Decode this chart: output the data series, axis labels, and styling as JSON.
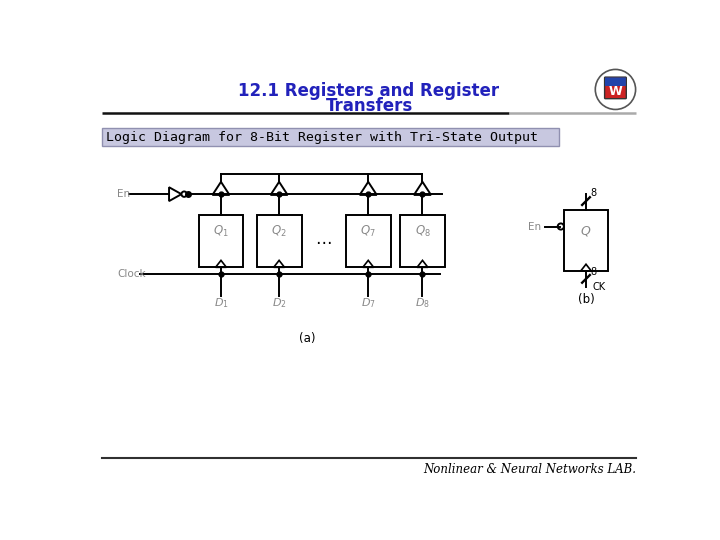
{
  "title_line1": "12.1 Registers and Register",
  "title_line2": "Transfers",
  "subtitle": "Logic Diagram for 8-Bit Register with Tri-State Output",
  "footer": "Nonlinear & Neural Networks LAB.",
  "title_color": "#2222BB",
  "subtitle_bg": "#C8C8E0",
  "subtitle_border": "#9090B0",
  "bg_color": "#FFFFFF",
  "line_color": "#000000",
  "gray_color": "#888888",
  "fig_width": 7.2,
  "fig_height": 5.4,
  "box_labels": [
    "$Q_1$",
    "$Q_2$",
    "$Q_7$",
    "$Q_8$"
  ],
  "d_labels": [
    "$D_1$",
    "$D_2$",
    "$D_7$",
    "$D_8$"
  ]
}
